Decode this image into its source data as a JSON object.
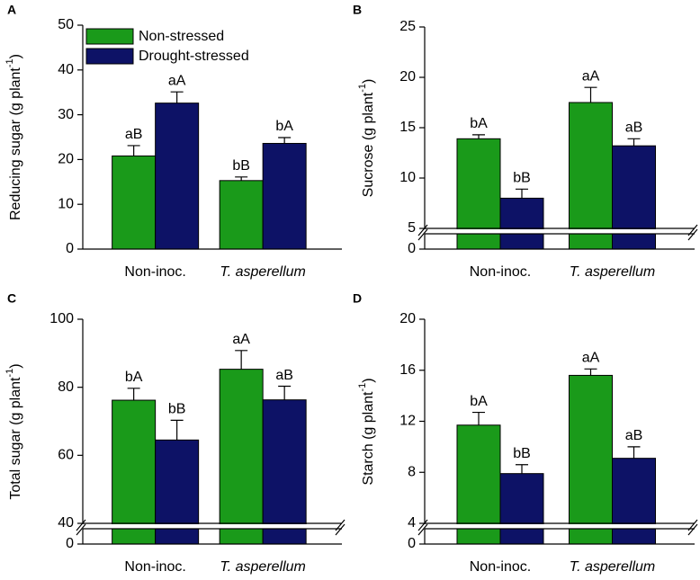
{
  "chart_data": [
    {
      "type": "bar",
      "panel": "A",
      "ylabel": {
        "text": "Reducing sugar (g plant",
        "sup": "-1",
        "close": ")"
      },
      "categories": [
        "Non-inoc.",
        "T. asperellum"
      ],
      "ylim": [
        0,
        50
      ],
      "yticks": [
        0,
        10,
        20,
        30,
        40,
        50
      ],
      "legend": true,
      "legend_position": "upper left",
      "series": [
        {
          "name": "Non-stressed",
          "color": "#1a9a1a",
          "values": [
            20.8,
            15.3
          ],
          "errors": [
            2.3,
            0.8
          ],
          "letters": [
            "aB",
            "bB"
          ]
        },
        {
          "name": "Drought-stressed",
          "color": "#0d1266",
          "values": [
            32.6,
            23.6
          ],
          "errors": [
            2.5,
            1.3
          ],
          "letters": [
            "aA",
            "bA"
          ]
        }
      ]
    },
    {
      "type": "bar",
      "panel": "B",
      "ylabel": {
        "text": "Sucrose (g plant",
        "sup": "-1",
        "close": ")"
      },
      "categories": [
        "Non-inoc.",
        "T. asperellum"
      ],
      "ylim": [
        0,
        25
      ],
      "yticks": [
        0,
        5,
        10,
        15,
        20,
        25
      ],
      "axis_break": 5,
      "legend": false,
      "series": [
        {
          "name": "Non-stressed",
          "color": "#1a9a1a",
          "values": [
            13.9,
            17.5
          ],
          "errors": [
            0.4,
            1.5
          ],
          "letters": [
            "bA",
            "aA"
          ]
        },
        {
          "name": "Drought-stressed",
          "color": "#0d1266",
          "values": [
            8.0,
            13.2
          ],
          "errors": [
            0.9,
            0.7
          ],
          "letters": [
            "bB",
            "aB"
          ]
        }
      ]
    },
    {
      "type": "bar",
      "panel": "C",
      "ylabel": {
        "text": "Total sugar (g plant",
        "sup": "-1",
        "close": ")"
      },
      "categories": [
        "Non-inoc.",
        "T. asperellum"
      ],
      "ylim": [
        0,
        100
      ],
      "yticks": [
        0,
        40,
        60,
        80,
        100
      ],
      "axis_break": 40,
      "legend": false,
      "series": [
        {
          "name": "Non-stressed",
          "color": "#1a9a1a",
          "values": [
            76.2,
            85.3
          ],
          "errors": [
            3.5,
            5.5
          ],
          "letters": [
            "bA",
            "aA"
          ]
        },
        {
          "name": "Drought-stressed",
          "color": "#0d1266",
          "values": [
            64.5,
            76.3
          ],
          "errors": [
            5.8,
            4.0
          ],
          "letters": [
            "bB",
            "aB"
          ]
        }
      ]
    },
    {
      "type": "bar",
      "panel": "D",
      "ylabel": {
        "text": "Starch (g plant",
        "sup": "-1",
        "close": ")"
      },
      "categories": [
        "Non-inoc.",
        "T. asperellum"
      ],
      "ylim": [
        0,
        20
      ],
      "yticks": [
        0,
        4,
        8,
        12,
        16,
        20
      ],
      "axis_break": 4,
      "legend": false,
      "series": [
        {
          "name": "Non-stressed",
          "color": "#1a9a1a",
          "values": [
            11.7,
            15.6
          ],
          "errors": [
            1.0,
            0.5
          ],
          "letters": [
            "bA",
            "aA"
          ]
        },
        {
          "name": "Drought-stressed",
          "color": "#0d1266",
          "values": [
            7.9,
            9.1
          ],
          "errors": [
            0.7,
            0.9
          ],
          "letters": [
            "bB",
            "aB"
          ]
        }
      ]
    }
  ]
}
